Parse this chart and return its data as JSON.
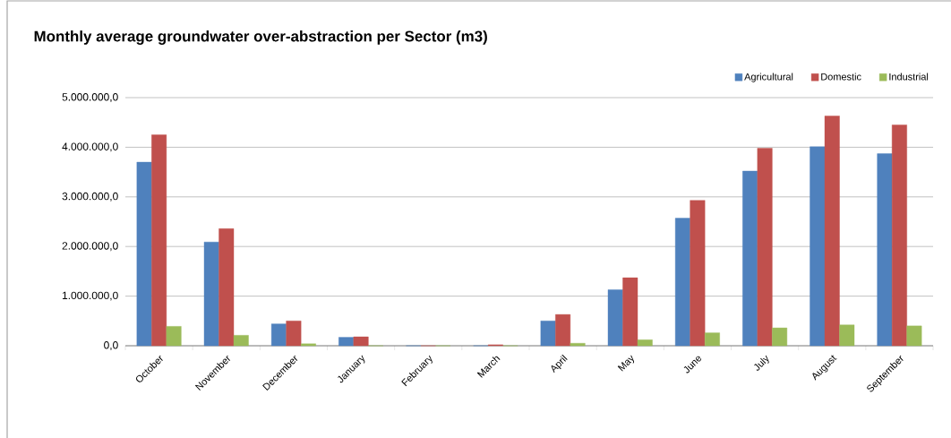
{
  "chart_data": {
    "type": "bar",
    "title": "Monthly average groundwater over-abstraction per Sector (m3)",
    "categories": [
      "October",
      "November",
      "December",
      "January",
      "February",
      "March",
      "April",
      "May",
      "June",
      "July",
      "August",
      "September"
    ],
    "series": [
      {
        "name": "Agricultural",
        "color": "#4f81bd",
        "values": [
          3700000,
          2090000,
          440000,
          170000,
          0,
          0,
          500000,
          1130000,
          2570000,
          3520000,
          4010000,
          3870000
        ]
      },
      {
        "name": "Domestic",
        "color": "#c0504d",
        "values": [
          4250000,
          2360000,
          500000,
          180000,
          0,
          20000,
          630000,
          1370000,
          2930000,
          3980000,
          4630000,
          4450000
        ]
      },
      {
        "name": "Industrial",
        "color": "#9bbb59",
        "values": [
          390000,
          210000,
          40000,
          0,
          0,
          0,
          50000,
          120000,
          260000,
          360000,
          420000,
          400000
        ]
      }
    ],
    "ylim": [
      0,
      5000000
    ],
    "yticks": [
      {
        "value": 0,
        "label": "0,0"
      },
      {
        "value": 1000000,
        "label": "1.000.000,0"
      },
      {
        "value": 2000000,
        "label": "2.000.000,0"
      },
      {
        "value": 3000000,
        "label": "3.000.000,0"
      },
      {
        "value": 4000000,
        "label": "4.000.000,0"
      },
      {
        "value": 5000000,
        "label": "5.000.000,0"
      }
    ],
    "grid": "y",
    "legend": "top right"
  }
}
